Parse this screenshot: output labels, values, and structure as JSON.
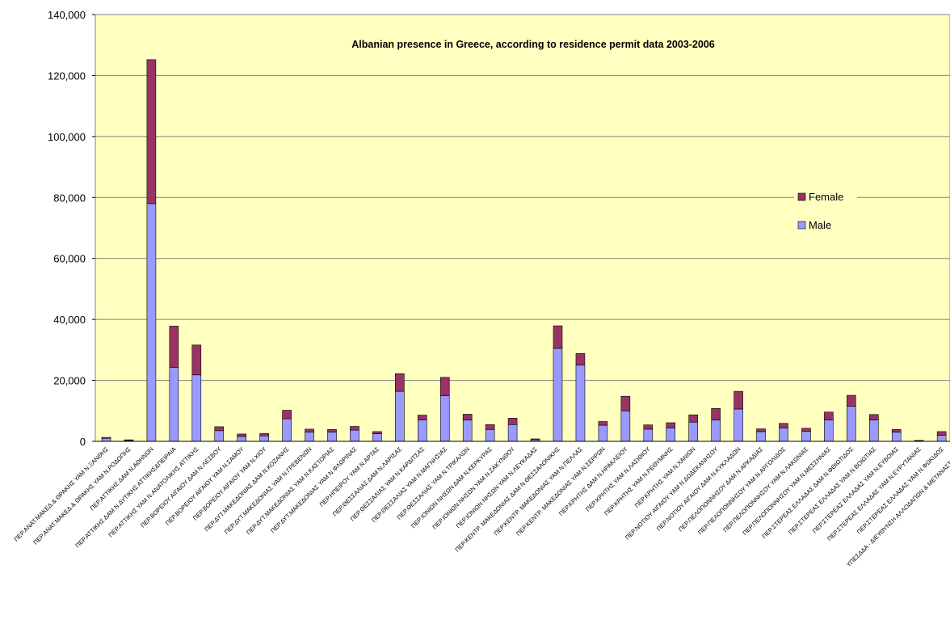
{
  "chart_data": {
    "type": "bar",
    "stacked": true,
    "title": "Albanian presence in Greece, according to residence permit data 2003-2006",
    "xlabel": "",
    "ylabel": "",
    "ylim": [
      0,
      140000
    ],
    "yticks": [
      "0",
      "20,000",
      "40,000",
      "60,000",
      "80,000",
      "100,000",
      "120,000",
      "140,000"
    ],
    "grid": true,
    "legend_position": "right",
    "plot_background": "#FFFFC0",
    "categories": [
      "ΠΕΡ.ΑΝΑΤ.ΜΑΚΕΔ.& ΘΡΑΚΗΣ ΥΑΜ Ν.ΞΑΝΘΗΣ",
      "ΠΕΡ.ΑΝΑΤ.ΜΑΚΕΔ.& ΘΡΑΚΗΣ ΥΑΜ Ν.ΡΟΔΟΠΗΣ",
      "ΠΕΡ.ΑΤΤΙΚΗΣ ΔΑΜ Ν.ΑΘΗΝΩΝ",
      "ΠΕΡ.ΑΤΤΙΚΗΣ ΔΑΜ Ν.ΔΥΤΙΚΗΣ ΑΤΤΙΚΗΣ&ΠΕΙΡΑΙΑ",
      "ΠΕΡ.ΑΤΤΙΚΗΣ ΥΑΜ Ν.ΑΝΑΤΟΛΙΚΗΣ ΑΤΤΙΚΗΣ",
      "ΠΕΡ.ΒΟΡΕΙΟΥ ΑΙΓΑΙΟΥ ΔΑΜ Ν.ΛΕΣΒΟΥ",
      "ΠΕΡ.ΒΟΡΕΙΟΥ ΑΙΓΑΙΟΥ ΥΑΜ Ν.ΣΑΜΟΥ",
      "ΠΕΡ.ΒΟΡΕΙΟΥ ΑΙΓΑΙΟΥ ΥΑΜ Ν.ΧΙΟΥ",
      "ΠΕΡ.ΔΥΤ.ΜΑΚΕΔΟΝΙΑΣ ΔΑΜ Ν.ΚΟΖΑΝΗΣ",
      "ΠΕΡ.ΔΥΤ.ΜΑΚΕΔΟΝΙΑΣ ΥΑΜ Ν.ΓΡΕΒΕΝΩΝ",
      "ΠΕΡ.ΔΥΤ.ΜΑΚΕΔΟΝΙΑΣ ΥΑΜ Ν.ΚΑΣΤΟΡΙΑΣ",
      "ΠΕΡ.ΔΥΤ.ΜΑΚΕΔΟΝΙΑΣ ΥΑΜ Ν.ΦΛΩΡΙΝΑΣ",
      "ΠΕΡ.ΗΠΕΙΡΟΥ ΥΑΜ Ν.ΑΡΤΑΣ",
      "ΠΕΡ.ΘΕΣΣΑΛΙΑΣ ΔΑΜ Ν.ΛΑΡΙΣΑΣ",
      "ΠΕΡ.ΘΕΣΣΑΛΙΑΣ ΥΑΜ Ν.ΚΑΡΔΙΤΣΑΣ",
      "ΠΕΡ.ΘΕΣΣΑΛΙΑΣ ΥΑΜ Ν.ΜΑΓΝΗΣΙΑΣ",
      "ΠΕΡ.ΘΕΣΣΑΛΙΑΣ ΥΑΜ Ν.ΤΡΙΚΑΛΩΝ",
      "ΠΕΡ.ΙΟΝΙΩΝ ΝΗΣΩΝ ΔΑΜ Ν.ΚΕΡΚΥΡΑΣ",
      "ΠΕΡ.ΙΟΝΙΩΝ ΝΗΣΩΝ ΥΑΜ Ν.ΖΑΚΥΝΘΟΥ",
      "ΠΕΡ.ΙΟΝΙΩΝ ΝΗΣΩΝ ΥΑΜ Ν.ΛΕΥΚΑΔΑΣ",
      "ΠΕΡ.ΚΕΝΤΡ. ΜΑΚΕΔΟΝΙΑΣ ΔΑΜ Ν.ΘΕΣΣΑΛΟΝΙΚΗΣ",
      "ΠΕΡ.ΚΕΝΤΡ. ΜΑΚΕΔΟΝΙΑΣ ΥΑΜ Ν.ΠΕΛΛΑΣ",
      "ΠΕΡ.ΚΕΝΤΡ. ΜΑΚΕΔΟΝΙΑΣ ΥΑΜ Ν.ΣΕΡΡΩΝ",
      "ΠΕΡ.ΚΡΗΤΗΣ ΔΑΜ Ν.ΗΡΑΚΛΕΙΟΥ",
      "ΠΕΡ.ΚΡΗΤΗΣ ΥΑΜ Ν.ΛΑΣΙΘΙΟΥ",
      "ΠΕΡ.ΚΡΗΤΗΣ ΥΑΜ Ν.ΡΕΘΥΜΝΗΣ",
      "ΠΕΡ.ΚΡΗΤΗΣ ΥΑΜ Ν.ΧΑΝΙΩΝ",
      "ΠΕΡ.ΝΟΤΙΟΥ ΑΙΓΑΙΟΥ ΥΑΜ Ν.ΔΩΔΕΚΑΝΗΣΟΥ",
      "ΠΕΡ.ΝΟΤΙΟΥ ΑΙΓΑΙΟΥ ΔΑΜ Ν.ΚΥΚΛΑΔΩΝ",
      "ΠΕΡ.ΠΕΛΟΠΟΝΝΗΣΟΥ ΔΑΜ Ν.ΑΡΚΑΔΙΑΣ",
      "ΠΕΡ.ΠΕΛΟΠΟΝΝΗΣΟΥ ΥΑΜ Ν.ΑΡΓΟΛΙΔΟΣ",
      "ΠΕΡ.ΠΕΛΟΠΟΝΝΗΣΟΥ ΥΑΜ Ν.ΛΑΚΩΝΙΑΣ",
      "ΠΕΡ.ΠΕΛΟΠΟΝΝΗΣΟΥ ΥΑΜ Ν.ΜΕΣΣΗΝΙΑΣ",
      "ΠΕΡ.ΣΤΕΡΕΑΣ ΕΛΛΑΔΑΣ ΔΑΜ Ν.ΦΘΙΩΤΙΔΟΣ",
      "ΠΕΡ.ΣΤΕΡΕΑΣ ΕΛΛΑΔΑΣ ΥΑΜ Ν.ΒΟΙΩΤΙΑΣ",
      "ΠΕΡ.ΣΤΕΡΕΑΣ ΕΛΛΑΔΑΣ ΥΑΜ Ν.ΕΥΒΟΙΑΣ",
      "ΠΕΡ.ΣΤΕΡΕΑΣ ΕΛΛΑΔΑΣ ΥΑΜ Ν.ΕΥΡΥΤΑΝΙΑΣ",
      "ΠΕΡ.ΣΤΕΡΕΑΣ ΕΛΛΑΔΑΣ ΥΑΜ Ν.ΦΩΚΙΔΟΣ",
      "ΥΠΕΣΔΔΑ - ΔΙΕΥΘΥΝΣΗ ΑΛΛΟΔΑΠΩΝ & ΜΕΤΑΝΑΣΤΕΥΣΗΣ"
    ],
    "series": [
      {
        "name": "Male",
        "color": "#9999FF",
        "values": [
          1000,
          300,
          78000,
          24300,
          21800,
          3500,
          1600,
          1800,
          7400,
          3000,
          3000,
          3700,
          2500,
          16400,
          7000,
          15000,
          7000,
          3900,
          5500,
          500,
          30500,
          25000,
          5300,
          10000,
          4000,
          4400,
          6300,
          7000,
          10600,
          3200,
          4400,
          3300,
          7000,
          11500,
          7000,
          3000,
          200,
          2000,
          1000
        ]
      },
      {
        "name": "Female",
        "color": "#993366",
        "values": [
          300,
          200,
          47200,
          13500,
          9800,
          1300,
          800,
          800,
          2800,
          1000,
          900,
          1200,
          700,
          5800,
          1600,
          6000,
          1900,
          1600,
          2100,
          300,
          7400,
          3800,
          1200,
          4800,
          1400,
          1700,
          2400,
          3800,
          5800,
          900,
          1500,
          1000,
          2600,
          3600,
          1800,
          900,
          100,
          1200,
          300
        ]
      }
    ]
  }
}
